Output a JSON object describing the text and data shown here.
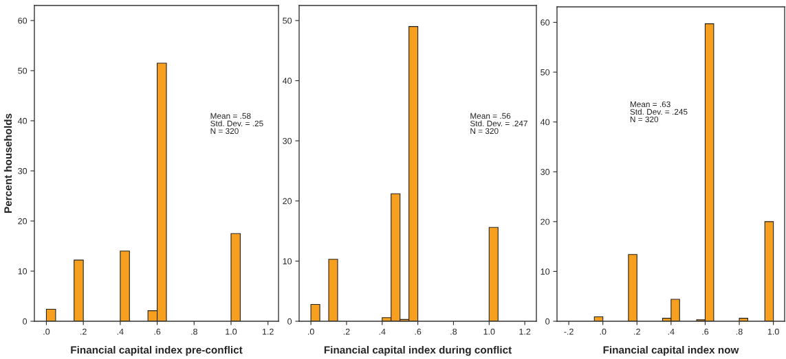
{
  "chart_data": [
    {
      "type": "histogram",
      "xlabel": "Financial capital index pre-conflict",
      "ylabel": "Percent households",
      "color": "#f7a020",
      "bins": [
        0,
        0.05,
        0.1,
        0.15,
        0.2,
        0.25,
        0.3,
        0.35,
        0.4,
        0.45,
        0.5,
        0.55,
        0.6,
        0.65,
        0.7,
        0.75,
        0.8,
        0.85,
        0.9,
        0.95,
        1.0,
        1.05
      ],
      "values": [
        2.4,
        0,
        0,
        12.2,
        0,
        0,
        0,
        0,
        14.0,
        0,
        0,
        2.1,
        51.5,
        0,
        0,
        0,
        0,
        0,
        0,
        0,
        17.5
      ],
      "xlim": [
        -0.065,
        1.257
      ],
      "ylim": [
        0,
        63
      ],
      "xticks": [
        {
          "value": 0,
          "label": ".0"
        },
        {
          "value": 0.2,
          "label": ".2"
        },
        {
          "value": 0.4,
          "label": ".4"
        },
        {
          "value": 0.6,
          "label": ".6"
        },
        {
          "value": 0.8,
          "label": ".8"
        },
        {
          "value": 1.0,
          "label": "1.0"
        },
        {
          "value": 1.2,
          "label": "1.2"
        }
      ],
      "yticks": [
        0,
        10,
        20,
        30,
        40,
        50,
        60
      ],
      "annotations": [
        "Mean = .58\nStd. Dev. = .25\nN = 320"
      ],
      "grid": false,
      "legend": false
    },
    {
      "type": "histogram",
      "xlabel": "Financial capital index during conflict",
      "color": "#f7a020",
      "bins": [
        0,
        0.05,
        0.1,
        0.15,
        0.2,
        0.25,
        0.3,
        0.35,
        0.4,
        0.45,
        0.5,
        0.55,
        0.6,
        0.65,
        0.7,
        0.75,
        0.8,
        0.85,
        0.9,
        0.95,
        1.0,
        1.05
      ],
      "values": [
        2.8,
        0,
        10.3,
        0,
        0,
        0,
        0,
        0,
        0.6,
        21.2,
        0.3,
        49.0,
        0,
        0,
        0,
        0,
        0,
        0,
        0,
        0,
        15.6
      ],
      "xlim": [
        -0.066,
        1.265
      ],
      "ylim": [
        0,
        52.5
      ],
      "xticks": [
        {
          "value": 0,
          "label": ".0"
        },
        {
          "value": 0.2,
          "label": ".2"
        },
        {
          "value": 0.4,
          "label": ".4"
        },
        {
          "value": 0.6,
          "label": ".6"
        },
        {
          "value": 0.8,
          "label": ".8"
        },
        {
          "value": 1.0,
          "label": "1.0"
        },
        {
          "value": 1.2,
          "label": "1.2"
        }
      ],
      "yticks": [
        0,
        10,
        20,
        30,
        40,
        50
      ],
      "annotations": [
        "Mean = .56\nStd. Dev. = .247\nN = 320"
      ],
      "grid": false,
      "legend": false
    },
    {
      "type": "histogram",
      "xlabel": "Financial capital index now",
      "color": "#f7a020",
      "bins": [
        -0.05,
        0,
        0.05,
        0.1,
        0.15,
        0.2,
        0.25,
        0.3,
        0.35,
        0.4,
        0.45,
        0.5,
        0.55,
        0.6,
        0.65,
        0.7,
        0.75,
        0.8,
        0.85,
        0.9,
        0.95,
        1.0
      ],
      "values": [
        0.9,
        0,
        0,
        0,
        13.4,
        0,
        0,
        0,
        0.6,
        4.4,
        0,
        0,
        0.3,
        59.7,
        0,
        0,
        0,
        0.6,
        0,
        0,
        20.0
      ],
      "xlim": [
        -0.269,
        1.066
      ],
      "ylim": [
        0,
        63.1
      ],
      "xticks": [
        {
          "value": -0.2,
          "label": "-.2"
        },
        {
          "value": 0,
          "label": ".0"
        },
        {
          "value": 0.2,
          "label": ".2"
        },
        {
          "value": 0.4,
          "label": ".4"
        },
        {
          "value": 0.6,
          "label": ".6"
        },
        {
          "value": 0.8,
          "label": ".8"
        },
        {
          "value": 1.0,
          "label": "1.0"
        }
      ],
      "yticks": [
        0,
        10,
        20,
        30,
        40,
        50,
        60
      ],
      "annotations": [
        "Mean = .63\nStd. Dev. = .245\nN = 320"
      ],
      "grid": false,
      "legend": false
    }
  ]
}
